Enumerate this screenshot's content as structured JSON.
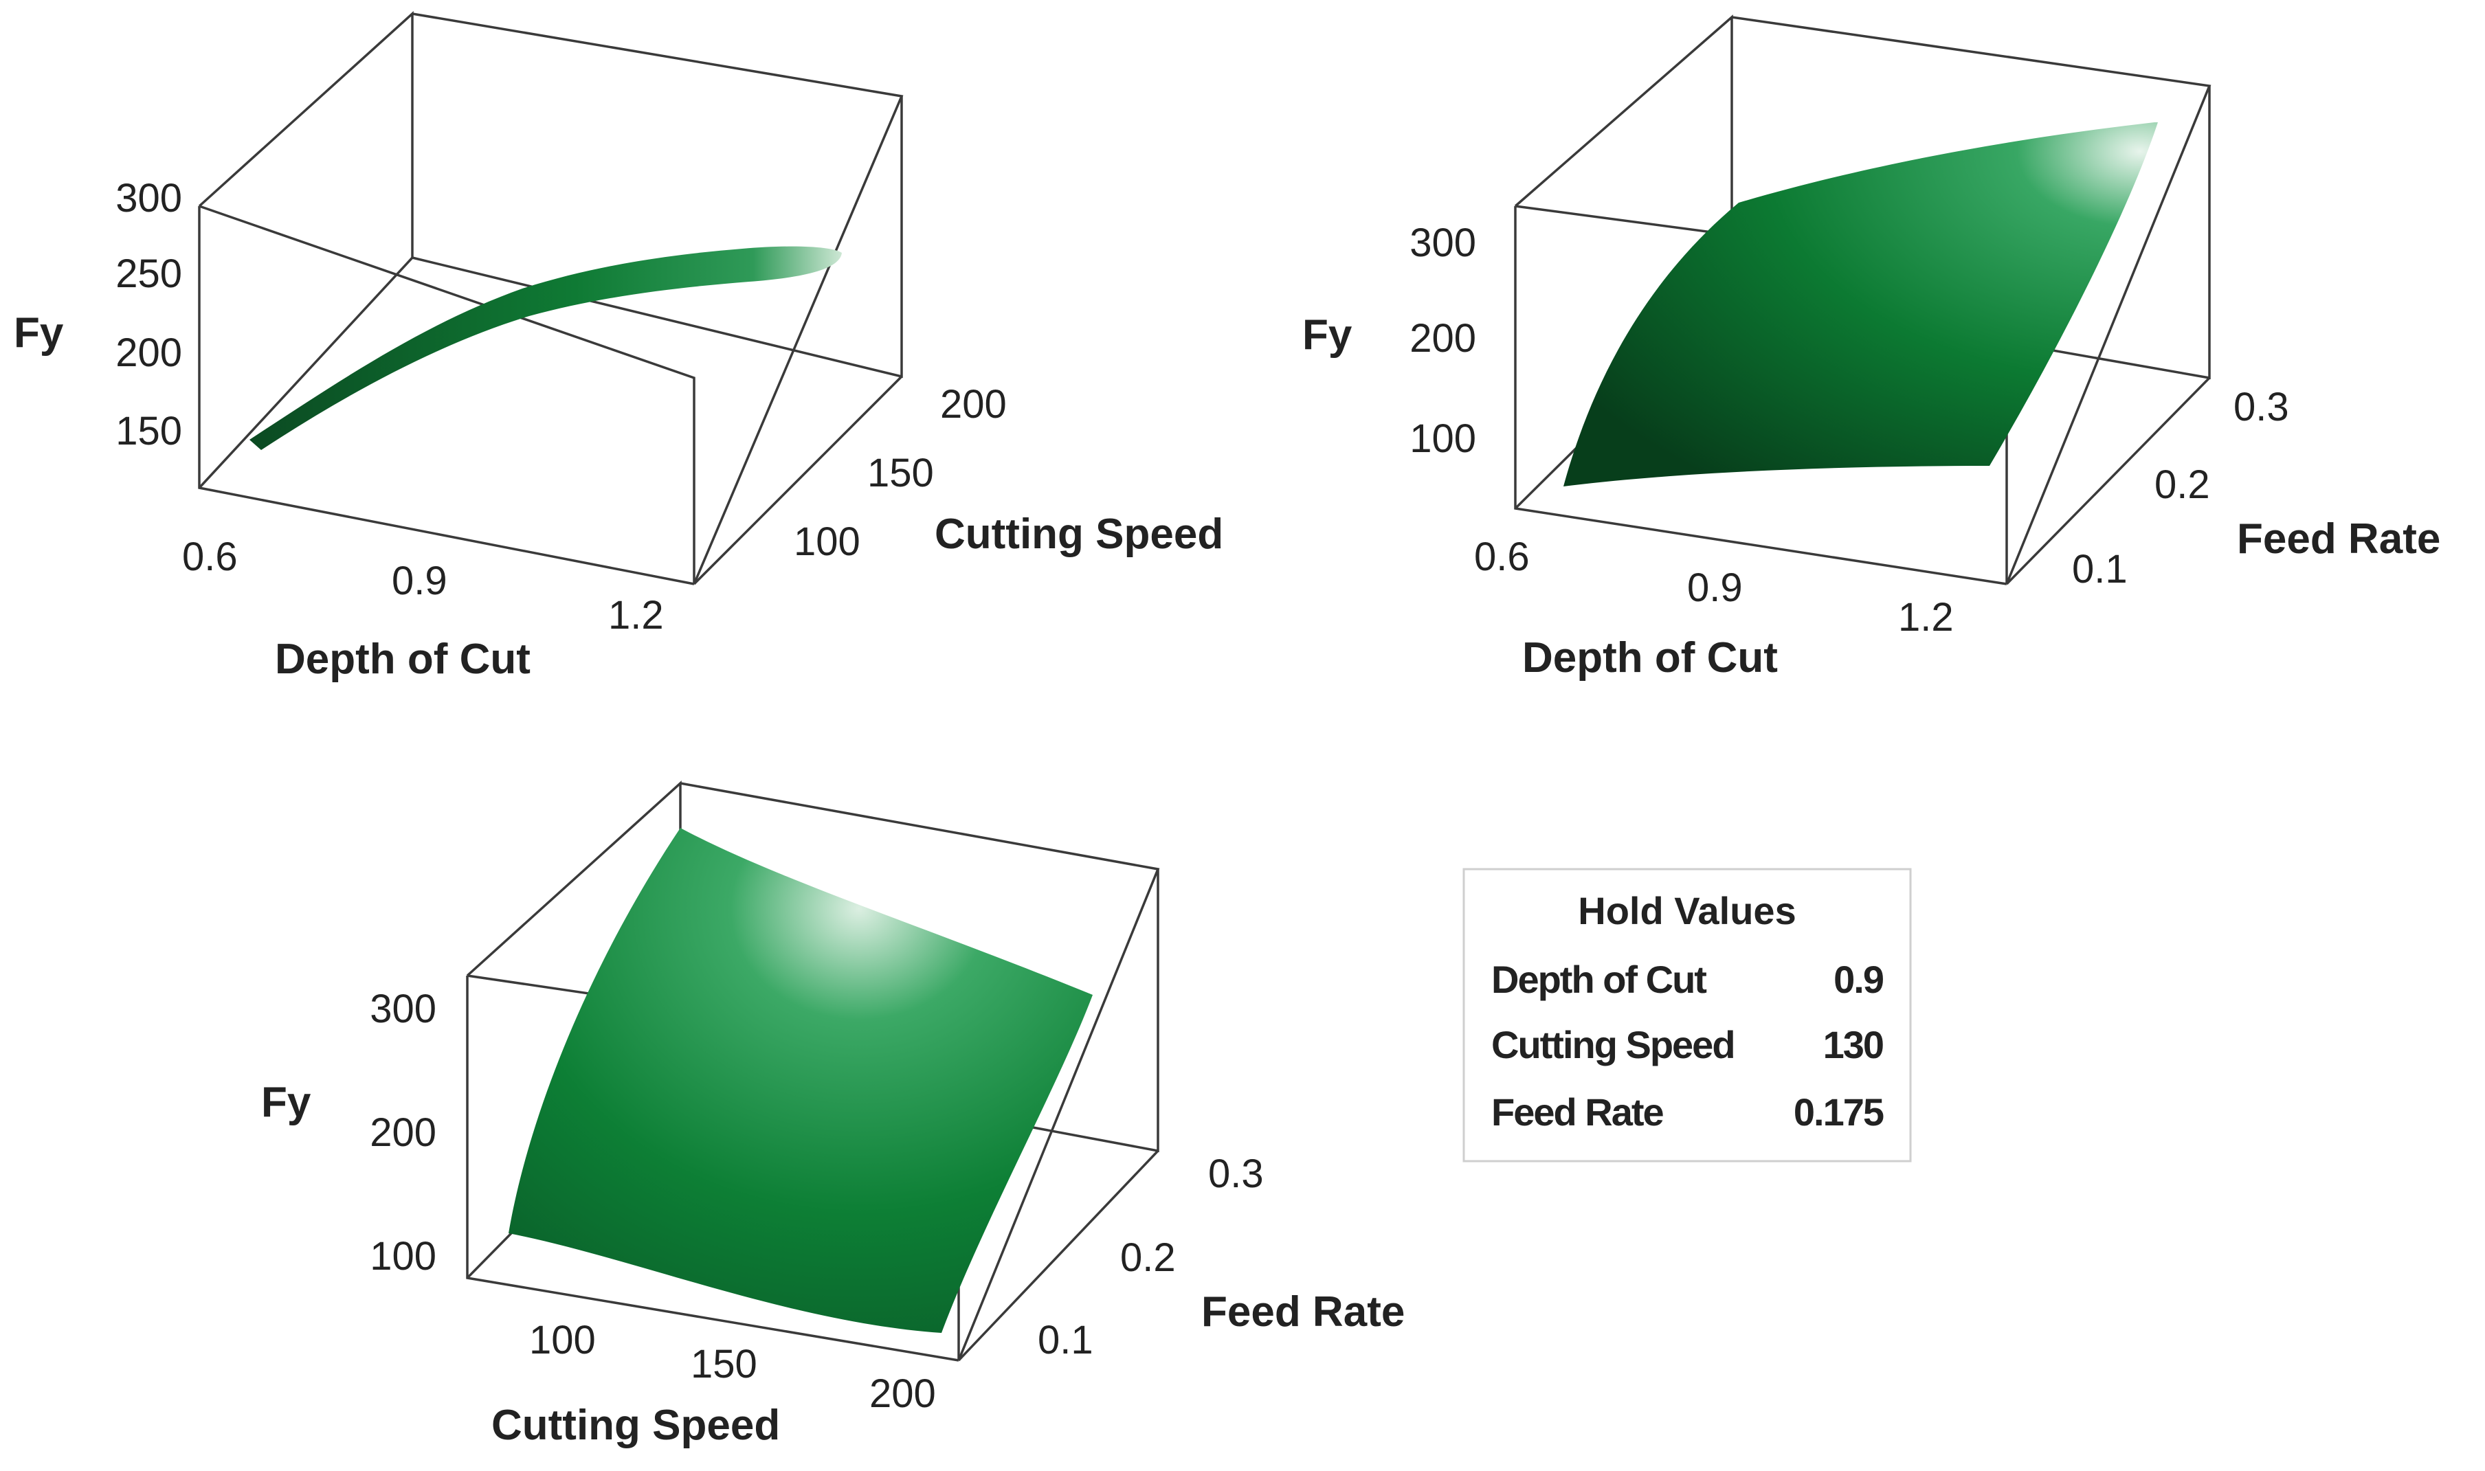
{
  "chart_data": [
    {
      "type": "surface",
      "zlabel": "Fy",
      "xlabel": "Depth of Cut",
      "ylabel": "Cutting Speed",
      "z_ticks": [
        "150",
        "200",
        "250",
        "300"
      ],
      "x_ticks": [
        "0.6",
        "0.9",
        "1.2"
      ],
      "y_ticks": [
        "100",
        "150",
        "200"
      ],
      "x_range": [
        0.6,
        1.2
      ],
      "y_range": [
        70,
        200
      ],
      "z_range": [
        120,
        300
      ],
      "surface_z_at_x": [
        [
          0.6,
          140
        ],
        [
          0.9,
          235
        ],
        [
          1.2,
          275
        ]
      ]
    },
    {
      "type": "surface",
      "zlabel": "Fy",
      "xlabel": "Depth of Cut",
      "ylabel": "Feed Rate",
      "z_ticks": [
        "100",
        "200",
        "300"
      ],
      "x_ticks": [
        "0.6",
        "0.9",
        "1.2"
      ],
      "y_ticks": [
        "0.1",
        "0.2",
        "0.3"
      ],
      "x_range": [
        0.6,
        1.2
      ],
      "y_range": [
        0.05,
        0.3
      ],
      "z_range": [
        50,
        350
      ]
    },
    {
      "type": "surface",
      "zlabel": "Fy",
      "xlabel": "Cutting Speed",
      "ylabel": "Feed Rate",
      "z_ticks": [
        "100",
        "200",
        "300"
      ],
      "x_ticks": [
        "100",
        "150",
        "200"
      ],
      "y_ticks": [
        "0.1",
        "0.2",
        "0.3"
      ],
      "x_range": [
        70,
        200
      ],
      "y_range": [
        0.05,
        0.3
      ],
      "z_range": [
        50,
        350
      ]
    }
  ],
  "hold_values": {
    "title": "Hold Values",
    "rows": [
      {
        "name": "Depth of Cut",
        "value": "0.9"
      },
      {
        "name": "Cutting Speed",
        "value": "130"
      },
      {
        "name": "Feed Rate",
        "value": "0.175"
      }
    ]
  }
}
